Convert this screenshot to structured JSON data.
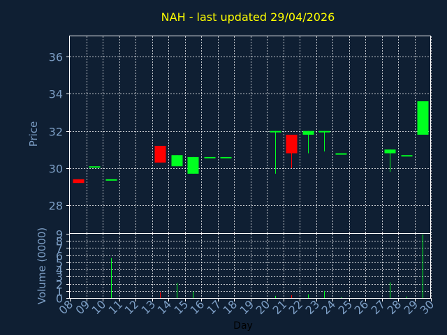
{
  "chart_data": [
    {
      "type": "candlestick",
      "title": "NAH - last updated 29/04/2026",
      "ylabel": "Price",
      "ylim": [
        26.5,
        37.1
      ],
      "yticks": [
        "28",
        "30",
        "32",
        "34",
        "36"
      ],
      "grid": true,
      "colors": {
        "up": "#00ff20",
        "down": "#ff0000",
        "grid": "#ffffff",
        "frame": "#ffffff",
        "text": "#7d9fc6",
        "title": "#ffff00",
        "background": "#0f1f33"
      },
      "candles": [
        {
          "day": 8,
          "open": 29.4,
          "high": 29.4,
          "low": 29.2,
          "close": 29.2
        },
        {
          "day": 9,
          "open": 30.1,
          "high": 30.1,
          "low": 30.1,
          "close": 30.1
        },
        {
          "day": 10,
          "open": 29.4,
          "high": 29.4,
          "low": 29.4,
          "close": 29.4
        },
        {
          "day": 13,
          "open": 31.2,
          "high": 31.2,
          "low": 30.3,
          "close": 30.3
        },
        {
          "day": 14,
          "open": 30.1,
          "high": 30.7,
          "low": 30.1,
          "close": 30.7
        },
        {
          "day": 15,
          "open": 29.7,
          "high": 30.6,
          "low": 29.7,
          "close": 30.6
        },
        {
          "day": 16,
          "open": 30.6,
          "high": 30.6,
          "low": 30.6,
          "close": 30.6
        },
        {
          "day": 17,
          "open": 30.6,
          "high": 30.6,
          "low": 30.6,
          "close": 30.6
        },
        {
          "day": 20,
          "open": 32.0,
          "high": 32.0,
          "low": 29.7,
          "close": 32.0
        },
        {
          "day": 21,
          "open": 31.8,
          "high": 31.8,
          "low": 30.0,
          "close": 30.8
        },
        {
          "day": 22,
          "open": 31.8,
          "high": 32.0,
          "low": 30.8,
          "close": 32.0
        },
        {
          "day": 23,
          "open": 32.0,
          "high": 32.0,
          "low": 30.9,
          "close": 32.0
        },
        {
          "day": 24,
          "open": 30.8,
          "high": 30.8,
          "low": 30.8,
          "close": 30.8
        },
        {
          "day": 27,
          "open": 30.8,
          "high": 31.0,
          "low": 29.8,
          "close": 31.0
        },
        {
          "day": 28,
          "open": 30.7,
          "high": 30.7,
          "low": 30.7,
          "close": 30.7
        },
        {
          "day": 29,
          "open": 31.8,
          "high": 33.6,
          "low": 31.8,
          "close": 33.6
        }
      ]
    },
    {
      "type": "bar",
      "ylabel": "Volume (0000)",
      "xlabel": "Day",
      "ylim": [
        0,
        9
      ],
      "yticks": [
        "0",
        "1",
        "2",
        "3",
        "4",
        "5",
        "6",
        "7",
        "8",
        "9"
      ],
      "xticks": [
        "08",
        "09",
        "10",
        "11",
        "12",
        "13",
        "14",
        "15",
        "16",
        "17",
        "18",
        "19",
        "20",
        "21",
        "22",
        "23",
        "24",
        "25",
        "26",
        "27",
        "28",
        "29",
        "30"
      ],
      "grid": true,
      "volumes": [
        {
          "day": 8,
          "value": 0.0
        },
        {
          "day": 9,
          "value": 0.0
        },
        {
          "day": 10,
          "value": 5.6
        },
        {
          "day": 13,
          "value": 0.8
        },
        {
          "day": 14,
          "value": 2.1
        },
        {
          "day": 15,
          "value": 0.9
        },
        {
          "day": 16,
          "value": 0.0
        },
        {
          "day": 17,
          "value": 0.0
        },
        {
          "day": 20,
          "value": 0.3
        },
        {
          "day": 21,
          "value": 0.4
        },
        {
          "day": 22,
          "value": 0.5
        },
        {
          "day": 23,
          "value": 1.0
        },
        {
          "day": 24,
          "value": 0.1
        },
        {
          "day": 27,
          "value": 2.2
        },
        {
          "day": 28,
          "value": 0.2
        },
        {
          "day": 29,
          "value": 8.9
        }
      ]
    }
  ]
}
